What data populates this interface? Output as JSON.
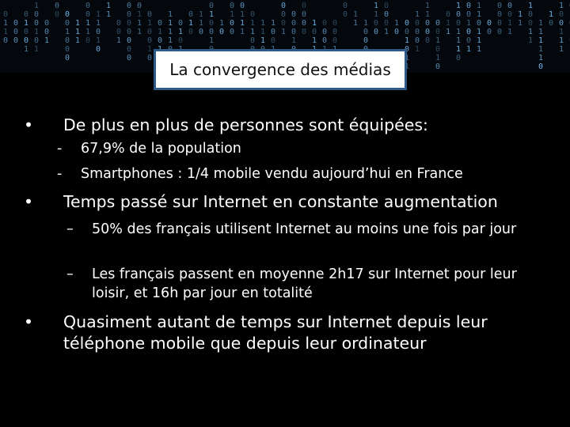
{
  "slide": {
    "title": "La convergence des médias",
    "bullet_marker": "•",
    "bullets": [
      {
        "text": "De plus en plus de personnes sont équipées:",
        "sub_marker": "-",
        "sub": [
          "67,9% de la population",
          "Smartphones : 1/4 mobile vendu aujourd’hui en France"
        ]
      },
      {
        "text": "Temps passé sur Internet en constante augmentation",
        "sub_marker": "–",
        "sub": [
          "50% des français utilisent Internet au moins une fois par jour",
          "Les français passent en moyenne 2h17 sur Internet pour leur loisir, et 16h par jour en totalité"
        ]
      },
      {
        "text": "Quasiment autant de temps sur Internet depuis leur téléphone mobile que depuis leur ordinateur",
        "sub_marker": "",
        "sub": []
      }
    ],
    "colors": {
      "background": "#000000",
      "title_border": "#2e5a8a",
      "matrix_glyph": "#6fb4e8"
    }
  }
}
